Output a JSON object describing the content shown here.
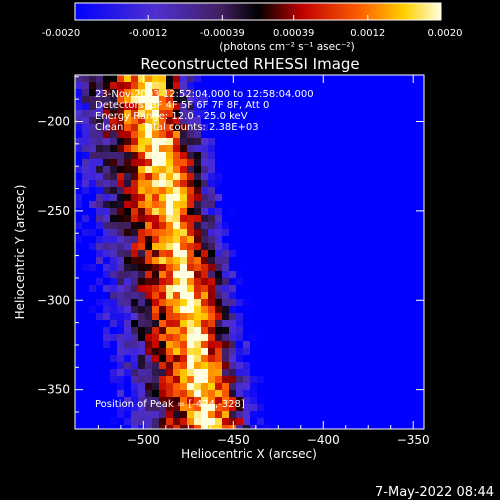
{
  "chart_data": {
    "type": "heatmap",
    "title": "Reconstructed RHESSI Image",
    "xlabel": "Heliocentric X (arcsec)",
    "ylabel": "Heliocentric Y (arcsec)",
    "xlim": [
      -538,
      -344
    ],
    "ylim": [
      -372,
      -174
    ],
    "x_ticks": [
      -500,
      -450,
      -400,
      -350
    ],
    "y_ticks": [
      -350,
      -300,
      -250,
      -200
    ],
    "colorbar": {
      "min": -0.002,
      "max": 0.002,
      "tick_values": [
        -0.002,
        -0.0012,
        -0.00039,
        0.00039,
        0.0012,
        0.002
      ],
      "tick_labels": [
        "-0.0020",
        "-0.0012",
        "-0.00039",
        "0.00039",
        "0.0012",
        "0.0020"
      ],
      "units_text": "(photons cm⁻² s⁻¹ asec⁻²)"
    },
    "annotations": [
      "23-Nov-2003 12:52:04.000 to 12:58:04.000",
      "Detectors: 3F 4F 5F 6F 7F 8F, Att 0",
      "Energy Range: 12.0 - 25.0 keV",
      "Clean      Total counts: 2.38E+03"
    ],
    "peak_label": "Position of Peak = [-474,-328]",
    "peak": [
      -474,
      -328
    ],
    "colors": {
      "low": "#0000ff",
      "mid_low": "#8040c0",
      "mid": "#000000",
      "mid_high": "#c00000",
      "high_orange": "#ff8000",
      "top": "#ffffe0"
    }
  },
  "footer": {
    "date": "7-May-2022 08:44"
  }
}
